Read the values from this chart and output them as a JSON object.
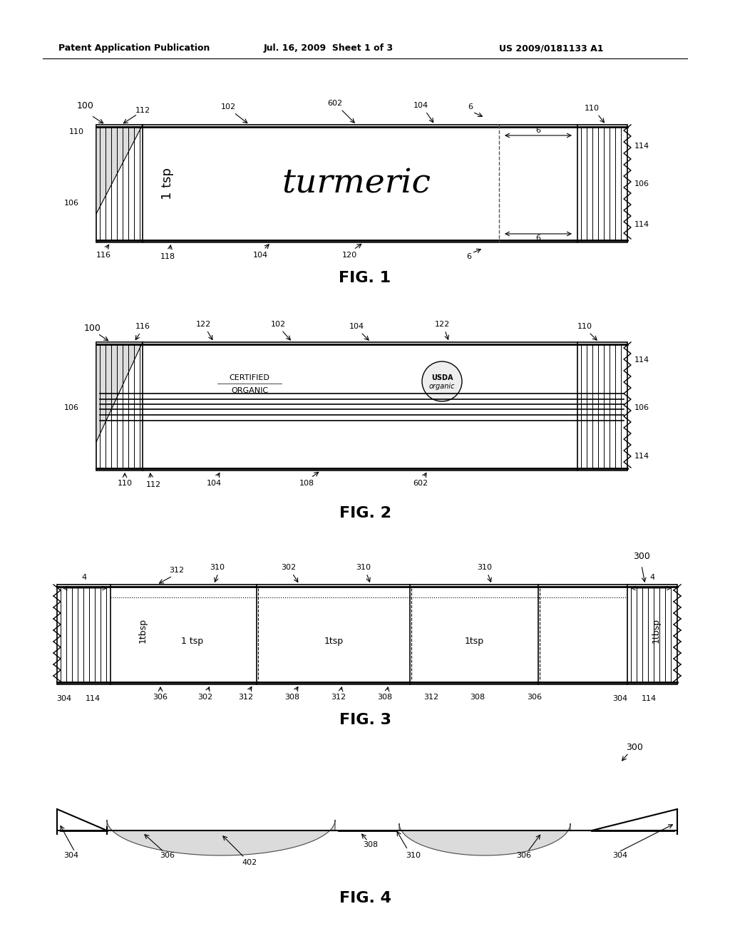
{
  "header_left": "Patent Application Publication",
  "header_mid": "Jul. 16, 2009  Sheet 1 of 3",
  "header_right": "US 2009/0181133 A1",
  "fig1_title": "FIG. 1",
  "fig2_title": "FIG. 2",
  "fig3_title": "FIG. 3",
  "fig4_title": "FIG. 4",
  "bg_color": "#ffffff",
  "line_color": "#000000",
  "light_gray": "#aaaaaa",
  "mid_gray": "#888888"
}
